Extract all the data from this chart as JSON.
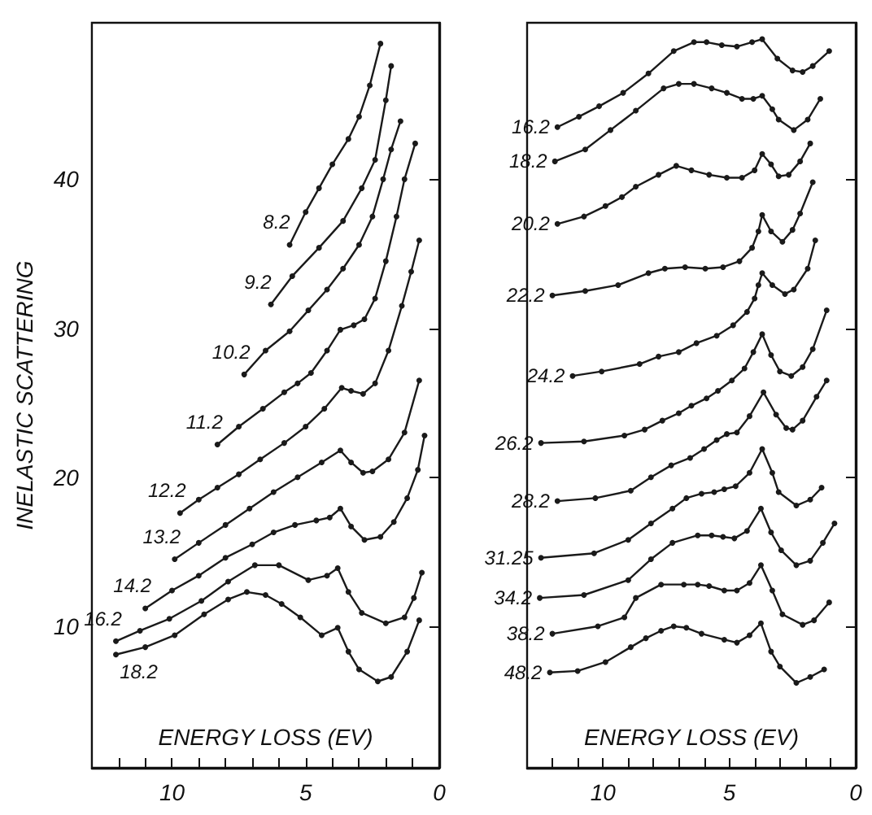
{
  "chart_data": [
    {
      "type": "line",
      "xlabel": "ENERGY LOSS (EV)",
      "ylabel": "INELASTIC SCATTERING",
      "xlim": [
        13,
        0
      ],
      "ylim": [
        0.5,
        50.5
      ],
      "xticks": [
        {
          "value": 12,
          "label": null
        },
        {
          "value": 11,
          "label": null
        },
        10,
        {
          "value": 9,
          "label": null
        },
        {
          "value": 8,
          "label": null
        },
        {
          "value": 7,
          "label": null
        },
        {
          "value": 6,
          "label": null
        },
        5,
        {
          "value": 4,
          "label": null
        },
        {
          "value": 3,
          "label": null
        },
        {
          "value": 2,
          "label": null
        },
        {
          "value": 1,
          "label": null
        },
        0
      ],
      "yticks": [
        10,
        20,
        30,
        40
      ],
      "marker": "circle",
      "line_style": "solid",
      "color": "#1a1a1a",
      "series": [
        {
          "name": "8.2",
          "x": [
            5.6,
            5.0,
            4.5,
            4.0,
            3.4,
            3.0,
            2.6,
            2.2
          ],
          "values": [
            35.6,
            37.8,
            39.4,
            41.0,
            42.7,
            44.2,
            46.3,
            49.1
          ]
        },
        {
          "name": "9.2",
          "x": [
            6.3,
            5.5,
            4.5,
            3.6,
            2.9,
            2.4,
            2.0,
            1.8
          ],
          "values": [
            31.6,
            33.5,
            35.4,
            37.2,
            39.4,
            41.3,
            45.3,
            47.6
          ]
        },
        {
          "name": "10.2",
          "x": [
            7.3,
            6.5,
            5.6,
            4.9,
            4.2,
            3.6,
            3.0,
            2.5,
            2.1,
            1.8,
            1.45
          ],
          "values": [
            26.9,
            28.5,
            29.8,
            31.2,
            32.6,
            34.0,
            35.6,
            37.5,
            40.0,
            42.0,
            43.9
          ]
        },
        {
          "name": "11.2",
          "x": [
            8.3,
            7.5,
            6.6,
            5.8,
            5.3,
            4.8,
            4.2,
            3.7,
            3.2,
            2.8,
            2.4,
            2.0,
            1.6,
            1.3,
            0.9
          ],
          "values": [
            22.2,
            23.4,
            24.6,
            25.7,
            26.3,
            27.0,
            28.5,
            29.9,
            30.2,
            30.6,
            32.0,
            34.5,
            37.5,
            40.0,
            42.4
          ]
        },
        {
          "name": "12.2",
          "x": [
            9.7,
            9.0,
            8.3,
            7.5,
            6.7,
            5.8,
            5.0,
            4.3,
            3.65,
            3.3,
            2.85,
            2.4,
            1.9,
            1.4,
            1.05,
            0.75
          ],
          "values": [
            17.6,
            18.5,
            19.3,
            20.2,
            21.2,
            22.3,
            23.4,
            24.6,
            26.0,
            25.8,
            25.6,
            26.3,
            28.5,
            31.5,
            33.8,
            35.9
          ]
        },
        {
          "name": "13.2",
          "x": [
            9.9,
            9.0,
            8.0,
            7.1,
            6.2,
            5.3,
            4.4,
            3.7,
            3.3,
            2.85,
            2.5,
            1.9,
            1.3,
            0.75
          ],
          "values": [
            14.5,
            15.6,
            16.8,
            17.9,
            19.0,
            20.0,
            21.0,
            21.8,
            21.0,
            20.3,
            20.4,
            21.2,
            23.0,
            26.5
          ]
        },
        {
          "name": "14.2",
          "x": [
            11.0,
            10.0,
            9.0,
            8.0,
            7.0,
            6.2,
            5.4,
            4.6,
            4.1,
            3.7,
            3.3,
            2.8,
            2.2,
            1.7,
            1.2,
            0.8,
            0.55
          ],
          "values": [
            11.2,
            12.4,
            13.4,
            14.6,
            15.5,
            16.3,
            16.8,
            17.1,
            17.3,
            17.9,
            16.7,
            15.8,
            16.0,
            17.0,
            18.6,
            20.5,
            22.8
          ]
        },
        {
          "name": "16.2",
          "x": [
            12.1,
            11.2,
            10.1,
            8.9,
            7.9,
            6.9,
            6.0,
            4.9,
            4.2,
            3.8,
            3.4,
            2.9,
            2.0,
            1.3,
            0.95,
            0.65
          ],
          "values": [
            9.0,
            9.7,
            10.5,
            11.7,
            13.0,
            14.1,
            14.1,
            13.1,
            13.4,
            13.9,
            12.3,
            10.9,
            10.2,
            10.6,
            11.9,
            13.6
          ]
        },
        {
          "name": "18.2",
          "x": [
            12.1,
            11.0,
            9.9,
            8.8,
            7.9,
            7.2,
            6.5,
            5.9,
            5.2,
            4.4,
            3.8,
            3.4,
            3.0,
            2.3,
            1.8,
            1.2,
            0.75
          ],
          "values": [
            8.1,
            8.6,
            9.4,
            10.8,
            11.8,
            12.3,
            12.1,
            11.5,
            10.6,
            9.4,
            9.9,
            8.3,
            7.1,
            6.3,
            6.6,
            8.3,
            10.4
          ]
        }
      ]
    },
    {
      "type": "line",
      "xlabel": "ENERGY LOSS (EV)",
      "xlim": [
        13,
        0
      ],
      "ylim": [
        0.5,
        50.5
      ],
      "tick_labels": "x",
      "xticks": [
        {
          "value": 12,
          "label": null
        },
        {
          "value": 11,
          "label": null
        },
        10,
        {
          "value": 9,
          "label": null
        },
        {
          "value": 8,
          "label": null
        },
        {
          "value": 7,
          "label": null
        },
        {
          "value": 6,
          "label": null
        },
        5,
        {
          "value": 4,
          "label": null
        },
        {
          "value": 3,
          "label": null
        },
        {
          "value": 2,
          "label": null
        },
        {
          "value": 1,
          "label": null
        },
        0
      ],
      "yticks": [
        10,
        20,
        30,
        40
      ],
      "marker": "circle",
      "line_style": "solid",
      "color": "#1a1a1a",
      "series": [
        {
          "name": "16.2",
          "x": [
            11.8,
            10.95,
            10.15,
            9.2,
            8.2,
            7.2,
            6.4,
            5.9,
            5.3,
            4.7,
            4.1,
            3.7,
            3.1,
            2.5,
            2.1,
            1.7,
            1.05
          ],
          "values": [
            43.5,
            44.2,
            44.9,
            45.8,
            47.1,
            48.6,
            49.2,
            49.2,
            49.0,
            48.9,
            49.2,
            49.4,
            48.1,
            47.3,
            47.2,
            47.6,
            48.6
          ]
        },
        {
          "name": "18.2",
          "x": [
            11.9,
            10.7,
            9.7,
            8.7,
            7.6,
            7.0,
            6.4,
            5.7,
            5.1,
            4.5,
            4.05,
            3.7,
            3.3,
            3.05,
            2.45,
            1.9,
            1.4
          ],
          "values": [
            41.2,
            42.0,
            43.3,
            44.6,
            46.1,
            46.4,
            46.4,
            46.1,
            45.8,
            45.4,
            45.4,
            45.6,
            44.7,
            44.0,
            43.3,
            44.0,
            45.4
          ]
        },
        {
          "name": "20.2",
          "x": [
            11.8,
            10.75,
            9.9,
            9.25,
            8.7,
            7.8,
            7.1,
            6.5,
            5.8,
            5.1,
            4.5,
            4.0,
            3.7,
            3.35,
            3.05,
            2.65,
            2.2,
            1.8
          ],
          "values": [
            37.0,
            37.5,
            38.2,
            38.8,
            39.5,
            40.3,
            40.9,
            40.6,
            40.3,
            40.1,
            40.1,
            40.6,
            41.7,
            41.0,
            40.2,
            40.3,
            41.2,
            42.4
          ]
        },
        {
          "name": "22.2",
          "x": [
            12.0,
            10.7,
            9.4,
            8.2,
            7.55,
            6.75,
            5.95,
            5.25,
            4.6,
            4.1,
            3.85,
            3.7,
            3.35,
            2.9,
            2.5,
            2.2,
            1.7
          ],
          "values": [
            32.2,
            32.5,
            32.9,
            33.7,
            34.0,
            34.1,
            34.0,
            34.1,
            34.5,
            35.4,
            36.5,
            37.6,
            36.5,
            35.8,
            36.6,
            37.7,
            39.8
          ]
        },
        {
          "name": "24.2",
          "x": [
            11.2,
            10.05,
            8.55,
            7.8,
            7.0,
            6.3,
            5.5,
            4.85,
            4.3,
            4.0,
            3.85,
            3.7,
            3.3,
            2.8,
            2.45,
            1.9,
            1.6
          ],
          "values": [
            26.8,
            27.1,
            27.6,
            28.1,
            28.4,
            29.0,
            29.5,
            30.2,
            31.1,
            32.0,
            32.9,
            33.7,
            32.9,
            32.3,
            32.6,
            34.0,
            35.9
          ]
        },
        {
          "name": "26.2",
          "x": [
            12.45,
            10.75,
            9.15,
            8.35,
            7.65,
            7.0,
            6.5,
            5.9,
            5.45,
            4.9,
            4.4,
            4.05,
            3.7,
            3.35,
            3.0,
            2.55,
            2.1,
            1.7,
            1.15
          ],
          "values": [
            22.3,
            22.4,
            22.8,
            23.2,
            23.8,
            24.3,
            24.8,
            25.3,
            25.8,
            26.5,
            27.3,
            28.4,
            29.6,
            28.2,
            27.1,
            26.8,
            27.4,
            28.6,
            31.2
          ]
        },
        {
          "name": "28.2",
          "x": [
            11.8,
            10.3,
            8.9,
            8.1,
            7.3,
            6.55,
            6.0,
            5.5,
            5.1,
            4.7,
            4.2,
            3.65,
            3.15,
            2.75,
            2.5,
            2.1,
            1.55,
            1.15
          ],
          "values": [
            18.4,
            18.6,
            19.1,
            20.0,
            20.8,
            21.3,
            21.9,
            22.5,
            22.9,
            23.0,
            24.1,
            25.7,
            24.2,
            23.3,
            23.2,
            23.8,
            25.4,
            26.5
          ]
        },
        {
          "name": "31.25",
          "x": [
            12.45,
            10.35,
            9.0,
            8.1,
            7.25,
            6.7,
            6.1,
            5.6,
            5.2,
            4.75,
            4.2,
            3.7,
            3.3,
            3.05,
            2.35,
            1.8,
            1.35
          ],
          "values": [
            14.6,
            14.9,
            15.8,
            16.9,
            17.9,
            18.6,
            18.9,
            19.0,
            19.2,
            19.4,
            20.3,
            21.9,
            20.3,
            19.0,
            18.1,
            18.5,
            19.3
          ]
        },
        {
          "name": "34.2",
          "x": [
            12.5,
            10.75,
            9.0,
            8.1,
            7.25,
            6.25,
            5.7,
            5.25,
            4.8,
            4.3,
            3.75,
            3.35,
            2.95,
            2.35,
            1.8,
            1.3,
            0.84
          ],
          "values": [
            11.9,
            12.1,
            13.1,
            14.5,
            15.6,
            16.1,
            16.1,
            16.0,
            15.9,
            16.4,
            17.9,
            16.3,
            15.1,
            14.1,
            14.4,
            15.6,
            16.9
          ]
        },
        {
          "name": "38.2",
          "x": [
            12.0,
            10.2,
            9.15,
            8.7,
            7.7,
            6.8,
            6.25,
            5.8,
            5.2,
            4.7,
            4.2,
            3.75,
            3.3,
            2.9,
            2.1,
            1.65,
            1.05
          ],
          "values": [
            9.5,
            10.0,
            10.6,
            11.9,
            12.8,
            12.8,
            12.8,
            12.7,
            12.4,
            12.4,
            12.9,
            14.1,
            12.4,
            10.8,
            10.1,
            10.4,
            11.6
          ]
        },
        {
          "name": "48.2",
          "x": [
            12.1,
            11.0,
            9.9,
            8.9,
            8.3,
            7.7,
            7.2,
            6.7,
            6.1,
            5.2,
            4.7,
            4.2,
            3.75,
            3.35,
            3.0,
            2.35,
            1.8,
            1.25
          ],
          "values": [
            6.9,
            7.0,
            7.6,
            8.6,
            9.2,
            9.7,
            10.0,
            9.9,
            9.5,
            9.1,
            8.9,
            9.4,
            10.2,
            8.3,
            7.3,
            6.2,
            6.6,
            7.1
          ]
        }
      ]
    }
  ]
}
